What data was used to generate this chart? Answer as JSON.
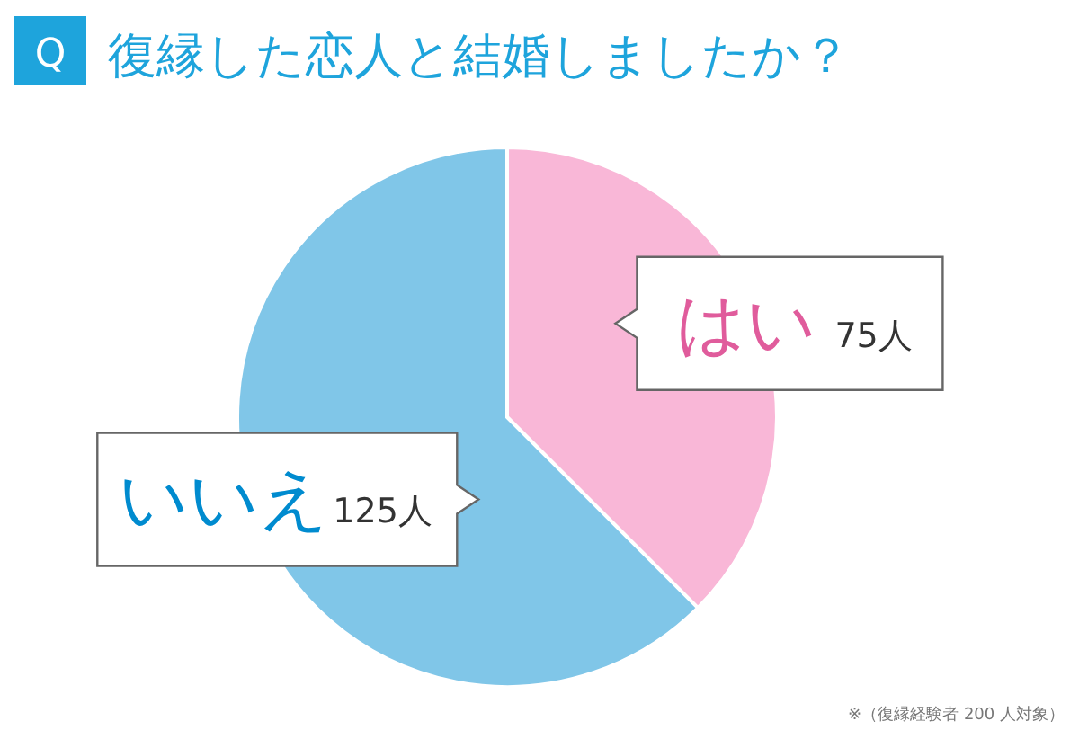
{
  "chart_data": {
    "type": "pie",
    "title": "Q 復縁した恋人と結婚しましたか？",
    "categories": [
      "はい",
      "いいえ"
    ],
    "values": [
      75,
      125
    ],
    "value_labels": [
      "75人",
      "125人"
    ],
    "colors": [
      "#f9b7d7",
      "#80c6e8"
    ],
    "annotations": [
      "※（復縁経験者 200 人対象）"
    ]
  }
}
